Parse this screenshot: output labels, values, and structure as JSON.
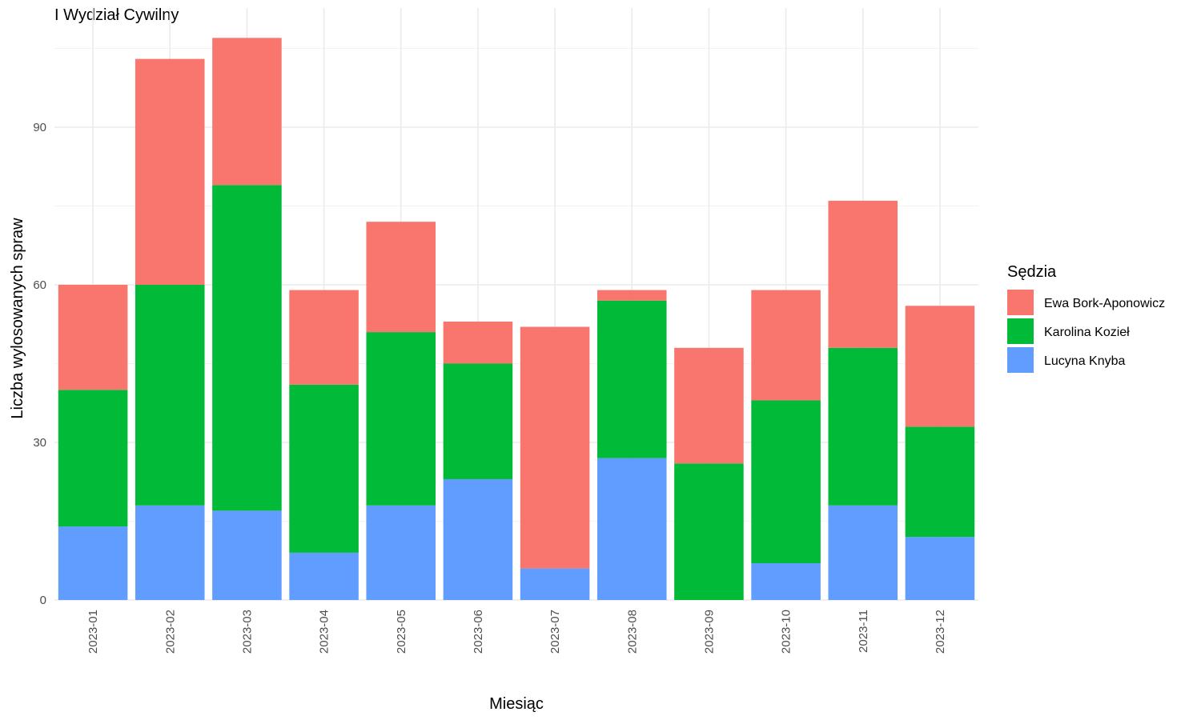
{
  "chart_data": {
    "type": "bar",
    "stacked": true,
    "title": "I Wydział Cywilny",
    "xlabel": "Miesiąc",
    "ylabel": "Liczba wylosowanych spraw",
    "categories": [
      "2023-01",
      "2023-02",
      "2023-03",
      "2023-04",
      "2023-05",
      "2023-06",
      "2023-07",
      "2023-08",
      "2023-09",
      "2023-10",
      "2023-11",
      "2023-12"
    ],
    "ylim": [
      0,
      110
    ],
    "yticks": [
      0,
      30,
      60,
      90
    ],
    "grid": true,
    "legend_title": "Sędzia",
    "legend_position": "right",
    "series": [
      {
        "name": "Ewa Bork-Aponowicz",
        "color": "#F8766D",
        "values": [
          20,
          43,
          28,
          18,
          21,
          8,
          46,
          2,
          22,
          21,
          28,
          23
        ]
      },
      {
        "name": "Karolina Kozieł",
        "color": "#00BA38",
        "values": [
          26,
          42,
          62,
          32,
          33,
          22,
          0,
          30,
          26,
          31,
          30,
          21
        ]
      },
      {
        "name": "Lucyna Knyba",
        "color": "#619CFF",
        "values": [
          14,
          18,
          17,
          9,
          18,
          23,
          6,
          27,
          0,
          7,
          18,
          12
        ]
      }
    ]
  }
}
